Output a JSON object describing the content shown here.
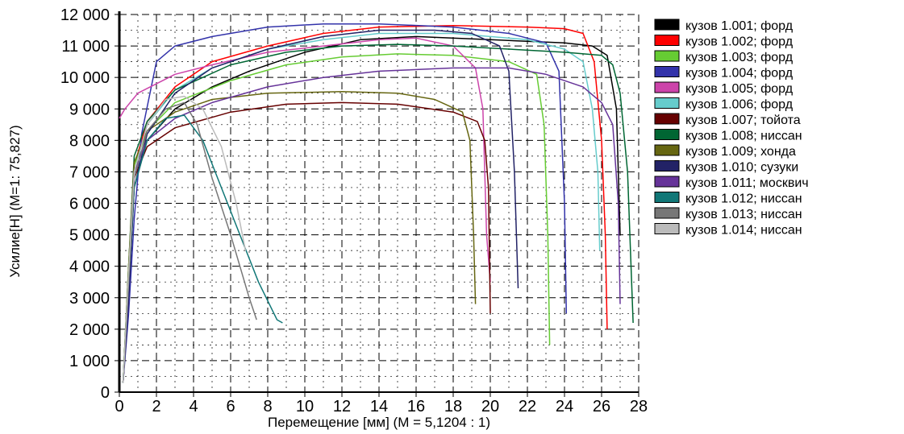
{
  "chart_data": {
    "type": "line",
    "xlabel": "Перемещение [мм]  (M = 5,1204 : 1)",
    "ylabel": "Усилие[Н]  (M=1: 75,827)",
    "xlim": [
      0,
      28
    ],
    "ylim": [
      0,
      12000
    ],
    "x_ticks": [
      "0",
      "2",
      "4",
      "6",
      "8",
      "10",
      "12",
      "14",
      "16",
      "18",
      "20",
      "22",
      "24",
      "26",
      "28"
    ],
    "y_ticks": [
      "0",
      "1 000",
      "2 000",
      "3 000",
      "4 000",
      "5 000",
      "6 000",
      "7 000",
      "8 000",
      "9 000",
      "10 000",
      "11 000",
      "12 000"
    ],
    "grid": true,
    "legend_position": "right",
    "series": [
      {
        "name": "кузов 1.001; форд",
        "color": "#000000",
        "points": [
          [
            0.2,
            300
          ],
          [
            0.5,
            3000
          ],
          [
            0.8,
            6500
          ],
          [
            1.5,
            8000
          ],
          [
            3,
            9000
          ],
          [
            5,
            9700
          ],
          [
            7,
            10200
          ],
          [
            10,
            10800
          ],
          [
            13,
            11200
          ],
          [
            16,
            11300
          ],
          [
            20,
            11200
          ],
          [
            24,
            11100
          ],
          [
            25.5,
            11000
          ],
          [
            26.3,
            10700
          ],
          [
            26.8,
            9000
          ],
          [
            27,
            5000
          ]
        ]
      },
      {
        "name": "кузов 1.002; форд",
        "color": "#ff0000",
        "points": [
          [
            0.2,
            300
          ],
          [
            0.5,
            3500
          ],
          [
            0.8,
            7200
          ],
          [
            1.5,
            8600
          ],
          [
            3,
            9700
          ],
          [
            5,
            10500
          ],
          [
            8,
            11000
          ],
          [
            11,
            11400
          ],
          [
            14,
            11600
          ],
          [
            18,
            11650
          ],
          [
            22,
            11600
          ],
          [
            24,
            11550
          ],
          [
            25,
            11400
          ],
          [
            25.6,
            10500
          ],
          [
            26,
            8000
          ],
          [
            26.2,
            5000
          ],
          [
            26.3,
            2000
          ]
        ]
      },
      {
        "name": "кузов 1.003; форд",
        "color": "#66cc33",
        "points": [
          [
            0.2,
            300
          ],
          [
            0.5,
            4000
          ],
          [
            0.8,
            7200
          ],
          [
            1.5,
            8300
          ],
          [
            3,
            9200
          ],
          [
            6,
            9900
          ],
          [
            9,
            10400
          ],
          [
            12,
            10650
          ],
          [
            15,
            10750
          ],
          [
            18,
            10700
          ],
          [
            21,
            10500
          ],
          [
            22.5,
            10100
          ],
          [
            22.9,
            8500
          ],
          [
            23.1,
            5000
          ],
          [
            23.2,
            1500
          ]
        ]
      },
      {
        "name": "кузов 1.004; форд",
        "color": "#3333aa",
        "points": [
          [
            0.2,
            300
          ],
          [
            0.5,
            2500
          ],
          [
            0.8,
            5500
          ],
          [
            1.2,
            8200
          ],
          [
            2,
            10500
          ],
          [
            3,
            11000
          ],
          [
            5,
            11300
          ],
          [
            8,
            11600
          ],
          [
            11,
            11700
          ],
          [
            14,
            11700
          ],
          [
            18,
            11600
          ],
          [
            21,
            11400
          ],
          [
            23,
            11100
          ],
          [
            23.7,
            10200
          ],
          [
            24,
            6000
          ],
          [
            24.1,
            2500
          ]
        ]
      },
      {
        "name": "кузов 1.005; форд",
        "color": "#cc44aa",
        "points": [
          [
            0,
            8700
          ],
          [
            0.3,
            9000
          ],
          [
            1,
            9500
          ],
          [
            3,
            10100
          ],
          [
            5,
            10400
          ],
          [
            8,
            10800
          ],
          [
            11,
            11000
          ],
          [
            14,
            11200
          ],
          [
            16,
            11250
          ],
          [
            18,
            11000
          ],
          [
            19.2,
            10300
          ],
          [
            19.6,
            9000
          ],
          [
            19.8,
            5000
          ],
          [
            20,
            3500
          ]
        ]
      },
      {
        "name": "кузов 1.006; форд",
        "color": "#66cccc",
        "points": [
          [
            0.2,
            300
          ],
          [
            0.5,
            3800
          ],
          [
            0.8,
            7000
          ],
          [
            1.5,
            8500
          ],
          [
            3,
            9600
          ],
          [
            5,
            10300
          ],
          [
            8,
            10900
          ],
          [
            11,
            11200
          ],
          [
            14,
            11400
          ],
          [
            18,
            11400
          ],
          [
            22,
            11200
          ],
          [
            24,
            10900
          ],
          [
            25,
            10500
          ],
          [
            25.5,
            9000
          ],
          [
            25.8,
            7000
          ],
          [
            25.9,
            4500
          ]
        ]
      },
      {
        "name": "кузов 1.007; тойота",
        "color": "#660000",
        "points": [
          [
            0.2,
            300
          ],
          [
            0.5,
            3000
          ],
          [
            0.8,
            6800
          ],
          [
            1.5,
            7800
          ],
          [
            3,
            8400
          ],
          [
            6,
            8900
          ],
          [
            9,
            9150
          ],
          [
            12,
            9200
          ],
          [
            15,
            9150
          ],
          [
            18,
            8900
          ],
          [
            19.3,
            8600
          ],
          [
            19.7,
            8000
          ],
          [
            19.9,
            6500
          ],
          [
            20,
            2500
          ]
        ]
      },
      {
        "name": "кузов 1.008; ниссан",
        "color": "#006633",
        "points": [
          [
            0.2,
            300
          ],
          [
            0.5,
            4000
          ],
          [
            0.8,
            7500
          ],
          [
            1.5,
            8600
          ],
          [
            3,
            9600
          ],
          [
            6,
            10400
          ],
          [
            9,
            10800
          ],
          [
            12,
            11000
          ],
          [
            15,
            11050
          ],
          [
            18,
            11000
          ],
          [
            21,
            10900
          ],
          [
            24,
            10800
          ],
          [
            26,
            10700
          ],
          [
            26.6,
            10400
          ],
          [
            27,
            9500
          ],
          [
            27.4,
            7000
          ],
          [
            27.7,
            2200
          ]
        ]
      },
      {
        "name": "кузов 1.009; хонда",
        "color": "#666611",
        "points": [
          [
            0.2,
            300
          ],
          [
            0.5,
            4000
          ],
          [
            0.8,
            7300
          ],
          [
            1.5,
            8300
          ],
          [
            3,
            8900
          ],
          [
            5,
            9300
          ],
          [
            8,
            9500
          ],
          [
            12,
            9550
          ],
          [
            15,
            9500
          ],
          [
            17,
            9300
          ],
          [
            18.5,
            8900
          ],
          [
            18.9,
            8000
          ],
          [
            19.1,
            5000
          ],
          [
            19.2,
            2800
          ]
        ]
      },
      {
        "name": "кузов 1.010; сузуки",
        "color": "#222266",
        "points": [
          [
            0.2,
            300
          ],
          [
            0.5,
            3000
          ],
          [
            0.8,
            6500
          ],
          [
            1.5,
            8200
          ],
          [
            3,
            9500
          ],
          [
            5,
            10300
          ],
          [
            8,
            10900
          ],
          [
            11,
            11300
          ],
          [
            14,
            11500
          ],
          [
            17,
            11500
          ],
          [
            19,
            11400
          ],
          [
            20.5,
            11000
          ],
          [
            21,
            10200
          ],
          [
            21.3,
            7000
          ],
          [
            21.5,
            3300
          ]
        ]
      },
      {
        "name": "кузов 1.011; москвич",
        "color": "#663399",
        "points": [
          [
            0.2,
            300
          ],
          [
            0.5,
            3500
          ],
          [
            0.8,
            7000
          ],
          [
            1.5,
            8000
          ],
          [
            3,
            8700
          ],
          [
            5,
            9200
          ],
          [
            8,
            9700
          ],
          [
            11,
            10000
          ],
          [
            14,
            10200
          ],
          [
            18,
            10300
          ],
          [
            21,
            10300
          ],
          [
            23,
            10100
          ],
          [
            25,
            9700
          ],
          [
            26,
            9200
          ],
          [
            26.6,
            8500
          ],
          [
            26.9,
            6000
          ],
          [
            27,
            2800
          ]
        ]
      },
      {
        "name": "кузов 1.012; ниссан",
        "color": "#117777",
        "points": [
          [
            0.2,
            300
          ],
          [
            0.5,
            3500
          ],
          [
            0.8,
            6500
          ],
          [
            1.5,
            8000
          ],
          [
            2.5,
            8700
          ],
          [
            3.5,
            8800
          ],
          [
            4.5,
            8000
          ],
          [
            5.5,
            6500
          ],
          [
            6.5,
            5000
          ],
          [
            7.5,
            3500
          ],
          [
            8.5,
            2300
          ],
          [
            8.8,
            2200
          ]
        ]
      },
      {
        "name": "кузов 1.013; ниссан",
        "color": "#777777",
        "points": [
          [
            0.2,
            300
          ],
          [
            0.5,
            3500
          ],
          [
            0.8,
            6800
          ],
          [
            1.5,
            8300
          ],
          [
            2.5,
            9000
          ],
          [
            3.5,
            9200
          ],
          [
            4.2,
            8500
          ],
          [
            5,
            6800
          ],
          [
            6,
            5000
          ],
          [
            7,
            3000
          ],
          [
            7.4,
            2300
          ]
        ]
      },
      {
        "name": "кузов 1.014; ниссан",
        "color": "#bbbbbb",
        "points": [
          [
            0.2,
            300
          ],
          [
            0.5,
            3800
          ],
          [
            0.8,
            7000
          ],
          [
            1.5,
            8500
          ],
          [
            2.5,
            9300
          ],
          [
            3.5,
            9400
          ],
          [
            4.5,
            9000
          ],
          [
            5.5,
            7800
          ],
          [
            6.3,
            6000
          ],
          [
            6.8,
            4500
          ]
        ]
      }
    ]
  }
}
